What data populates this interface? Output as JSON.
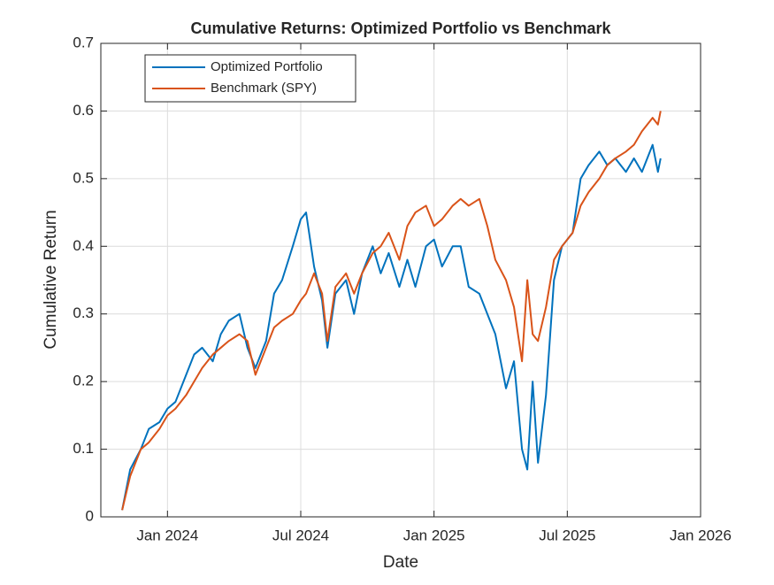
{
  "chart_data": {
    "type": "line",
    "title": "Cumulative Returns: Optimized Portfolio vs Benchmark",
    "xlabel": "Date",
    "ylabel": "Cumulative Return",
    "x": [
      2023.83,
      2023.86,
      2023.9,
      2023.93,
      2023.97,
      2024,
      2024.03,
      2024.07,
      2024.1,
      2024.13,
      2024.17,
      2024.2,
      2024.23,
      2024.27,
      2024.3,
      2024.33,
      2024.37,
      2024.4,
      2024.43,
      2024.47,
      2024.5,
      2024.52,
      2024.55,
      2024.58,
      2024.6,
      2024.63,
      2024.67,
      2024.7,
      2024.73,
      2024.77,
      2024.8,
      2024.83,
      2024.87,
      2024.9,
      2024.93,
      2024.97,
      2025,
      2025.03,
      2025.07,
      2025.1,
      2025.13,
      2025.17,
      2025.2,
      2025.23,
      2025.27,
      2025.3,
      2025.33,
      2025.35,
      2025.37,
      2025.39,
      2025.42,
      2025.45,
      2025.48,
      2025.52,
      2025.55,
      2025.58,
      2025.62,
      2025.65,
      2025.68,
      2025.72,
      2025.75,
      2025.78,
      2025.82,
      2025.84,
      2025.85
    ],
    "series": [
      {
        "name": "Optimized Portfolio",
        "color": "#0072bd",
        "values": [
          0.01,
          0.07,
          0.1,
          0.13,
          0.14,
          0.16,
          0.17,
          0.21,
          0.24,
          0.25,
          0.23,
          0.27,
          0.29,
          0.3,
          0.25,
          0.22,
          0.26,
          0.33,
          0.35,
          0.4,
          0.44,
          0.45,
          0.37,
          0.32,
          0.25,
          0.33,
          0.35,
          0.3,
          0.36,
          0.4,
          0.36,
          0.39,
          0.34,
          0.38,
          0.34,
          0.4,
          0.41,
          0.37,
          0.4,
          0.4,
          0.34,
          0.33,
          0.3,
          0.27,
          0.19,
          0.23,
          0.1,
          0.07,
          0.2,
          0.08,
          0.18,
          0.35,
          0.4,
          0.42,
          0.5,
          0.52,
          0.54,
          0.52,
          0.53,
          0.51,
          0.53,
          0.51,
          0.55,
          0.51,
          0.53
        ]
      },
      {
        "name": "Benchmark (SPY)",
        "color": "#d95319",
        "values": [
          0.01,
          0.06,
          0.1,
          0.11,
          0.13,
          0.15,
          0.16,
          0.18,
          0.2,
          0.22,
          0.24,
          0.25,
          0.26,
          0.27,
          0.26,
          0.21,
          0.25,
          0.28,
          0.29,
          0.3,
          0.32,
          0.33,
          0.36,
          0.33,
          0.26,
          0.34,
          0.36,
          0.33,
          0.36,
          0.39,
          0.4,
          0.42,
          0.38,
          0.43,
          0.45,
          0.46,
          0.43,
          0.44,
          0.46,
          0.47,
          0.46,
          0.47,
          0.43,
          0.38,
          0.35,
          0.31,
          0.23,
          0.35,
          0.27,
          0.26,
          0.31,
          0.38,
          0.4,
          0.42,
          0.46,
          0.48,
          0.5,
          0.52,
          0.53,
          0.54,
          0.55,
          0.57,
          0.59,
          0.58,
          0.6
        ]
      }
    ],
    "xlim": [
      2023.75,
      2026
    ],
    "xticks": [
      {
        "value": 2024,
        "label": "Jan 2024"
      },
      {
        "value": 2024.5,
        "label": "Jul 2024"
      },
      {
        "value": 2025,
        "label": "Jan 2025"
      },
      {
        "value": 2025.5,
        "label": "Jul 2025"
      },
      {
        "value": 2026,
        "label": "Jan 2026"
      }
    ],
    "ylim": [
      0,
      0.7
    ],
    "yticks": [
      0,
      0.1,
      0.2,
      0.3,
      0.4,
      0.5,
      0.6,
      0.7
    ],
    "grid": true,
    "legend": "top-left"
  }
}
